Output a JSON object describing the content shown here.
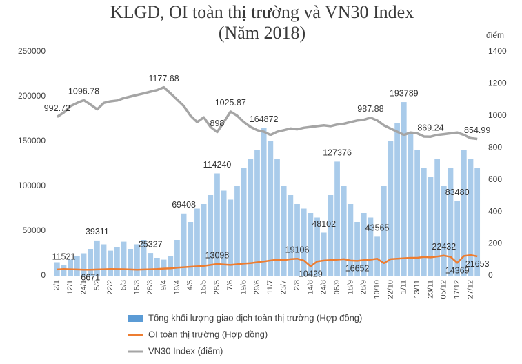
{
  "chart_data": {
    "type": "bar-line",
    "title": "KLGD, OI toàn thị trường và VN30 Index",
    "subtitle": "(Năm 2018)",
    "y2_label": "điểm",
    "grid": false,
    "categories": [
      "2/1",
      null,
      "12/1",
      null,
      "24/1",
      null,
      "5/2",
      null,
      "22/2",
      null,
      "6/3",
      null,
      "16/3",
      null,
      "28/3",
      null,
      "9/4",
      null,
      "19/4",
      null,
      "4/5",
      null,
      "16/5",
      null,
      "28/5",
      null,
      "7/6",
      null,
      "19/6",
      null,
      "29/6",
      null,
      "11/7",
      null,
      "23/7",
      null,
      "2/8",
      null,
      "14/8",
      null,
      "24/8",
      null,
      "06/9",
      null,
      "18/9",
      null,
      "28/9",
      null,
      "10/10",
      null,
      "22/10",
      null,
      "1/11",
      null,
      "13/11",
      null,
      "23/11",
      null,
      "05/12",
      null,
      "17/12",
      null,
      "27/12",
      null
    ],
    "ylim": [
      0,
      250000
    ],
    "yticks": [
      0,
      50000,
      100000,
      150000,
      200000,
      250000
    ],
    "y2lim": [
      0,
      1400
    ],
    "y2ticks": [
      0,
      200,
      400,
      600,
      800,
      1000,
      1200,
      1400
    ],
    "series": [
      {
        "name": "Tổng khối lượng giao dịch toàn thị trường (Hợp đồng)",
        "kind": "bar",
        "color": "#a9cbea",
        "values": [
          15000,
          11521,
          18000,
          22000,
          25000,
          30000,
          39311,
          35000,
          28000,
          32000,
          38000,
          30000,
          35000,
          40000,
          25327,
          20000,
          18000,
          22000,
          40000,
          69408,
          60000,
          75000,
          80000,
          90000,
          114240,
          95000,
          85000,
          100000,
          120000,
          130000,
          140000,
          164872,
          150000,
          130000,
          100000,
          90000,
          80000,
          75000,
          70000,
          65000,
          48102,
          90000,
          127376,
          100000,
          80000,
          60000,
          70000,
          65000,
          43565,
          100000,
          150000,
          170000,
          193789,
          160000,
          140000,
          120000,
          110000,
          130000,
          100000,
          120000,
          83480,
          140000,
          130000,
          120000
        ],
        "value_labels": [
          null,
          "11521",
          null,
          null,
          null,
          null,
          "39311",
          null,
          null,
          null,
          null,
          null,
          null,
          null,
          "25327",
          null,
          null,
          null,
          null,
          "69408",
          null,
          null,
          null,
          null,
          "114240",
          null,
          null,
          null,
          null,
          null,
          null,
          "164872",
          null,
          null,
          null,
          null,
          null,
          null,
          null,
          null,
          "48102",
          null,
          "127376",
          null,
          null,
          null,
          null,
          null,
          "43565",
          null,
          null,
          null,
          "193789",
          null,
          null,
          null,
          null,
          null,
          null,
          null,
          "83480",
          null,
          null,
          null
        ]
      },
      {
        "name": "OI toàn thị trường (Hợp đồng)",
        "kind": "line",
        "color": "#ed7d31",
        "values": [
          7000,
          7500,
          7200,
          7000,
          6800,
          6671,
          7000,
          7200,
          7500,
          7400,
          7300,
          7000,
          6800,
          7000,
          7200,
          7500,
          8000,
          8200,
          9000,
          9500,
          10000,
          10500,
          11000,
          12000,
          13098,
          12500,
          12000,
          12800,
          13500,
          14000,
          15000,
          16000,
          17000,
          18000,
          17500,
          18500,
          19106,
          17000,
          10429,
          16000,
          17000,
          17500,
          18000,
          18500,
          17000,
          16652,
          17500,
          18000,
          19000,
          14000,
          18500,
          19000,
          19500,
          20000,
          20000,
          21000,
          20500,
          21500,
          22432,
          21000,
          14369,
          22000,
          23000,
          21653
        ],
        "value_labels": [
          null,
          null,
          null,
          null,
          null,
          "6671",
          null,
          null,
          null,
          null,
          null,
          null,
          null,
          null,
          null,
          null,
          null,
          null,
          null,
          null,
          null,
          null,
          null,
          null,
          "13098",
          null,
          null,
          null,
          null,
          null,
          null,
          null,
          null,
          null,
          null,
          null,
          "19106",
          null,
          "10429",
          null,
          null,
          null,
          null,
          null,
          null,
          "16652",
          null,
          null,
          null,
          null,
          null,
          null,
          null,
          null,
          null,
          null,
          null,
          null,
          "22432",
          null,
          "14369",
          null,
          null,
          "21653"
        ]
      },
      {
        "name": "VN30 Index (điểm)",
        "kind": "line",
        "axis": "y2",
        "color": "#a5a5a5",
        "values": [
          992.72,
          1020,
          1060,
          1080,
          1096.78,
          1070,
          1040,
          1080,
          1090,
          1095,
          1110,
          1120,
          1130,
          1140,
          1150,
          1160,
          1177.68,
          1140,
          1100,
          1060,
          1000,
          960,
          990,
          930,
          898,
          960,
          1025.87,
          1000,
          960,
          930,
          910,
          900,
          880,
          900,
          910,
          920,
          915,
          925,
          930,
          935,
          940,
          935,
          945,
          950,
          960,
          970,
          975,
          987.88,
          970,
          940,
          920,
          900,
          880,
          895,
          890,
          870,
          869.24,
          880,
          885,
          890,
          895,
          880,
          860,
          854.99
        ],
        "value_labels": [
          "992.72",
          null,
          null,
          null,
          "1096.78",
          null,
          null,
          null,
          null,
          null,
          null,
          null,
          null,
          null,
          null,
          null,
          "1177.68",
          null,
          null,
          null,
          null,
          null,
          null,
          null,
          "898",
          null,
          "1025.87",
          null,
          null,
          null,
          null,
          null,
          null,
          null,
          null,
          null,
          null,
          null,
          null,
          null,
          null,
          null,
          null,
          null,
          null,
          null,
          null,
          "987.88",
          null,
          null,
          null,
          null,
          null,
          null,
          null,
          null,
          "869.24",
          null,
          null,
          null,
          null,
          null,
          null,
          "854.99"
        ]
      }
    ]
  }
}
